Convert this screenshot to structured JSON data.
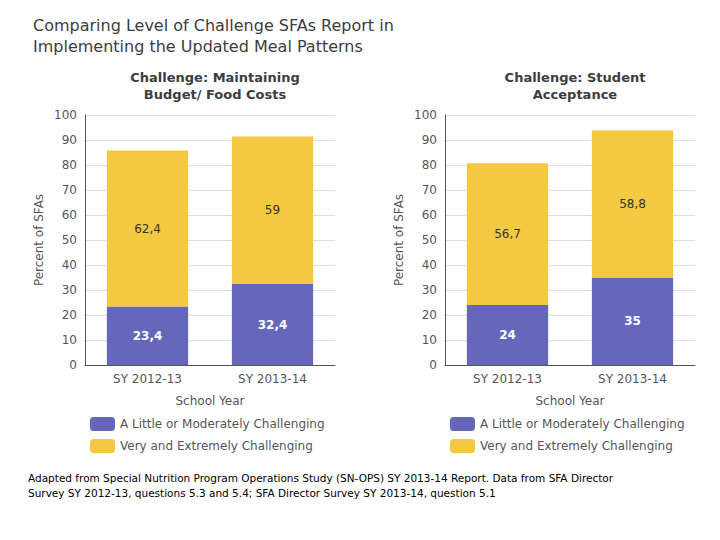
{
  "title": "Comparing Level of Challenge SFAs Report in\nImplementing the Updated Meal Patterns",
  "annotations": [
    "Adapted from Special Nutrition Program Operations Study (SN-OPS) SY 2013-14 Report. Data from SFA Director\nSurvey SY 2012-13, questions 5.3 and 5.4; SFA Director Survey SY 2013-14, question 5.1"
  ],
  "chart_data": [
    {
      "type": "bar",
      "title": "Challenge: Maintaining\nBudget/ Food Costs",
      "categories": [
        "SY 2012-13",
        "SY 2013-14"
      ],
      "xlabel": "School Year",
      "ylabel": "Percent of SFAs",
      "series": [
        {
          "name": "A Little or Moderately Challenging",
          "color": "#6666BB",
          "values": [
            23.4,
            32.4
          ],
          "value_labels": [
            "23,4",
            "32,4"
          ]
        },
        {
          "name": "Very and Extremely Challenging",
          "color": "#F5C842",
          "values": [
            62.4,
            59.0
          ],
          "value_labels": [
            "62,4",
            "59"
          ]
        }
      ],
      "stacked": true,
      "data_labels": true,
      "ylim": [
        0,
        100
      ],
      "yticks": [
        0,
        10,
        20,
        30,
        40,
        50,
        60,
        70,
        80,
        90,
        100
      ],
      "grid": true,
      "legend": "bottom"
    },
    {
      "type": "bar",
      "title": "Challenge: Student\nAcceptance",
      "categories": [
        "SY 2012-13",
        "SY 2013-14"
      ],
      "xlabel": "School Year",
      "ylabel": "Percent of SFAs",
      "series": [
        {
          "name": "A Little or Moderately Challenging",
          "color": "#6666BB",
          "values": [
            24.0,
            35.0
          ],
          "value_labels": [
            "24",
            "35"
          ]
        },
        {
          "name": "Very and Extremely Challenging",
          "color": "#F5C842",
          "values": [
            56.7,
            58.8
          ],
          "value_labels": [
            "56,7",
            "58,8"
          ]
        }
      ],
      "stacked": true,
      "data_labels": true,
      "ylim": [
        0,
        100
      ],
      "yticks": [
        0,
        10,
        20,
        30,
        40,
        50,
        60,
        70,
        80,
        90,
        100
      ],
      "grid": true,
      "legend": "bottom"
    }
  ]
}
